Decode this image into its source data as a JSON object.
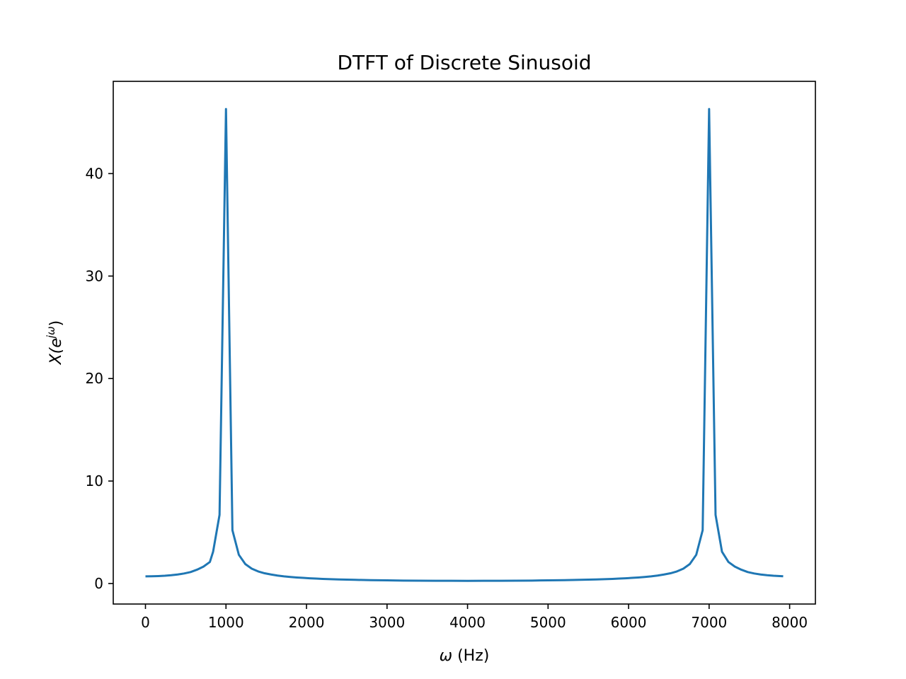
{
  "chart_data": {
    "type": "line",
    "title": "DTFT of Discrete Sinusoid",
    "xlabel": {
      "symbol": "ω",
      "rest": " (Hz)"
    },
    "ylabel": {
      "base": "X(e",
      "sup": "jω",
      "close": ")"
    },
    "xlim": [
      -400,
      8320
    ],
    "ylim": [
      -2,
      49
    ],
    "xticks": [
      0,
      1000,
      2000,
      3000,
      4000,
      5000,
      6000,
      7000,
      8000
    ],
    "yticks": [
      0,
      10,
      20,
      30,
      40
    ],
    "grid": false,
    "series_color": "#1f77b4",
    "series": [
      {
        "x": [
          0,
          80,
          160,
          240,
          320,
          400,
          480,
          560,
          640,
          720,
          800,
          840,
          920,
          1000,
          1080,
          1160,
          1240,
          1320,
          1400,
          1480,
          1560,
          1640,
          1720,
          1800,
          1880,
          1960,
          2040,
          2120,
          2200,
          2400,
          2600,
          2800,
          3000,
          3200,
          3400,
          3600,
          3800,
          4000,
          4200,
          4400,
          4600,
          4800,
          5000,
          5200,
          5400,
          5600,
          5800,
          5880,
          5960,
          6040,
          6120,
          6200,
          6280,
          6360,
          6440,
          6520,
          6600,
          6680,
          6760,
          6840,
          6920,
          7000,
          7080,
          7160,
          7240,
          7320,
          7400,
          7480,
          7560,
          7640,
          7720,
          7800,
          7880,
          7920
        ],
        "y": [
          0.7,
          0.71,
          0.73,
          0.76,
          0.81,
          0.88,
          0.98,
          1.12,
          1.35,
          1.65,
          2.1,
          3.1,
          6.7,
          46.3,
          5.2,
          2.8,
          1.9,
          1.45,
          1.18,
          1.0,
          0.88,
          0.78,
          0.7,
          0.64,
          0.59,
          0.55,
          0.51,
          0.48,
          0.45,
          0.4,
          0.36,
          0.33,
          0.31,
          0.29,
          0.28,
          0.27,
          0.265,
          0.26,
          0.265,
          0.27,
          0.28,
          0.29,
          0.31,
          0.33,
          0.36,
          0.4,
          0.45,
          0.48,
          0.51,
          0.55,
          0.59,
          0.64,
          0.7,
          0.78,
          0.88,
          1.0,
          1.18,
          1.45,
          1.9,
          2.8,
          5.2,
          46.3,
          6.7,
          3.1,
          2.1,
          1.65,
          1.35,
          1.12,
          0.98,
          0.88,
          0.81,
          0.76,
          0.73,
          0.71
        ]
      }
    ]
  }
}
